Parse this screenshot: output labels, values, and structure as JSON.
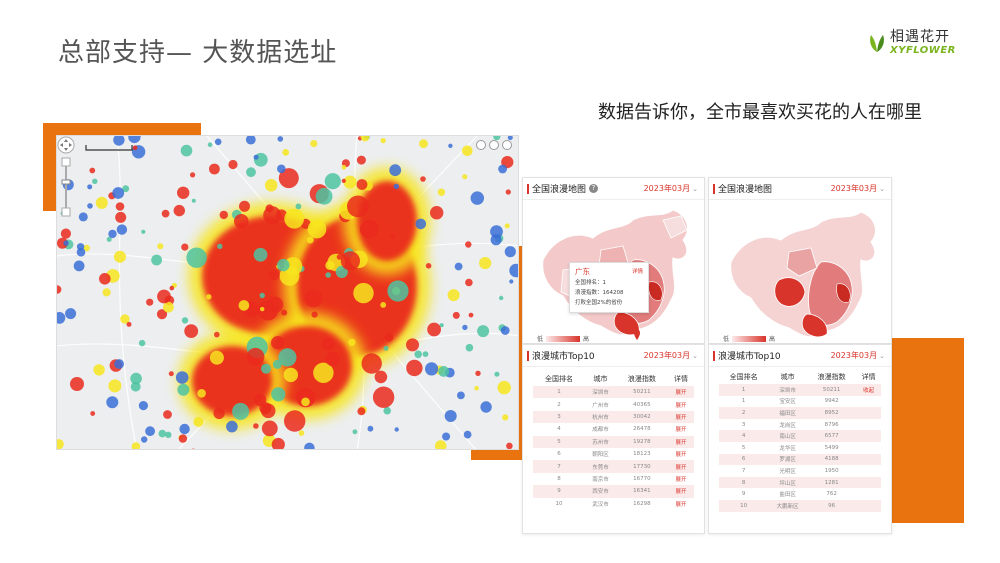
{
  "slide": {
    "title": "总部支持— 大数据选址",
    "subtitle": "数据告诉你，全市最喜欢买花的人在哪里"
  },
  "logo": {
    "cn": "相遇花开",
    "en": "XYFLOWER"
  },
  "colors": {
    "accent_orange": "#e8730f",
    "map_red": "#d9342b",
    "heat_low": "#3b6fd6",
    "heat_mid": "#f7e51e",
    "heat_high": "#ea2a1d"
  },
  "heatmap": {
    "icons": [
      "zoom-control",
      "ruler-scale",
      "map-tool-buttons"
    ]
  },
  "left_card": {
    "map_title": "全国浪漫地图",
    "date": "2023年03月",
    "legend_low": "低",
    "legend_high": "高",
    "pin_value": "164208",
    "tooltip": {
      "province": "广东",
      "detail_link": "详情",
      "line1": "全国排名：1",
      "line2": "浪漫指数：164208",
      "line3": "打败全国2%的省份"
    },
    "table_title": "浪漫城市Top10",
    "table_date": "2023年03月",
    "columns": [
      "全国排名",
      "城市",
      "浪漫指数",
      "详情"
    ],
    "rows": [
      {
        "rank": "1",
        "city": "深圳市",
        "index": "50211",
        "action": "展开"
      },
      {
        "rank": "2",
        "city": "广州市",
        "index": "40365",
        "action": "展开"
      },
      {
        "rank": "3",
        "city": "杭州市",
        "index": "30042",
        "action": "展开"
      },
      {
        "rank": "4",
        "city": "成都市",
        "index": "26478",
        "action": "展开"
      },
      {
        "rank": "5",
        "city": "苏州市",
        "index": "19278",
        "action": "展开"
      },
      {
        "rank": "6",
        "city": "朝阳区",
        "index": "18123",
        "action": "展开"
      },
      {
        "rank": "7",
        "city": "东莞市",
        "index": "17730",
        "action": "展开"
      },
      {
        "rank": "8",
        "city": "南京市",
        "index": "16770",
        "action": "展开"
      },
      {
        "rank": "9",
        "city": "西安市",
        "index": "16341",
        "action": "展开"
      },
      {
        "rank": "10",
        "city": "武汉市",
        "index": "16298",
        "action": "展开"
      }
    ]
  },
  "right_card": {
    "map_title": "全国浪漫地图",
    "date": "2023年03月",
    "legend_low": "低",
    "legend_high": "高",
    "table_title": "浪漫城市Top10",
    "table_date": "2023年03月",
    "columns": [
      "全国排名",
      "城市",
      "浪漫指数",
      "详情"
    ],
    "rows": [
      {
        "rank": "1",
        "city": "深圳市",
        "index": "50211",
        "action": "收起"
      },
      {
        "rank": "1",
        "city": "宝安区",
        "index": "9942",
        "action": ""
      },
      {
        "rank": "2",
        "city": "福田区",
        "index": "8952",
        "action": ""
      },
      {
        "rank": "3",
        "city": "龙岗区",
        "index": "8796",
        "action": ""
      },
      {
        "rank": "4",
        "city": "南山区",
        "index": "6577",
        "action": ""
      },
      {
        "rank": "5",
        "city": "龙华区",
        "index": "5499",
        "action": ""
      },
      {
        "rank": "6",
        "city": "罗湖区",
        "index": "4188",
        "action": ""
      },
      {
        "rank": "7",
        "city": "光明区",
        "index": "1950",
        "action": ""
      },
      {
        "rank": "8",
        "city": "坪山区",
        "index": "1281",
        "action": ""
      },
      {
        "rank": "9",
        "city": "盐田区",
        "index": "762",
        "action": ""
      },
      {
        "rank": "10",
        "city": "大鹏新区",
        "index": "96",
        "action": ""
      }
    ]
  }
}
